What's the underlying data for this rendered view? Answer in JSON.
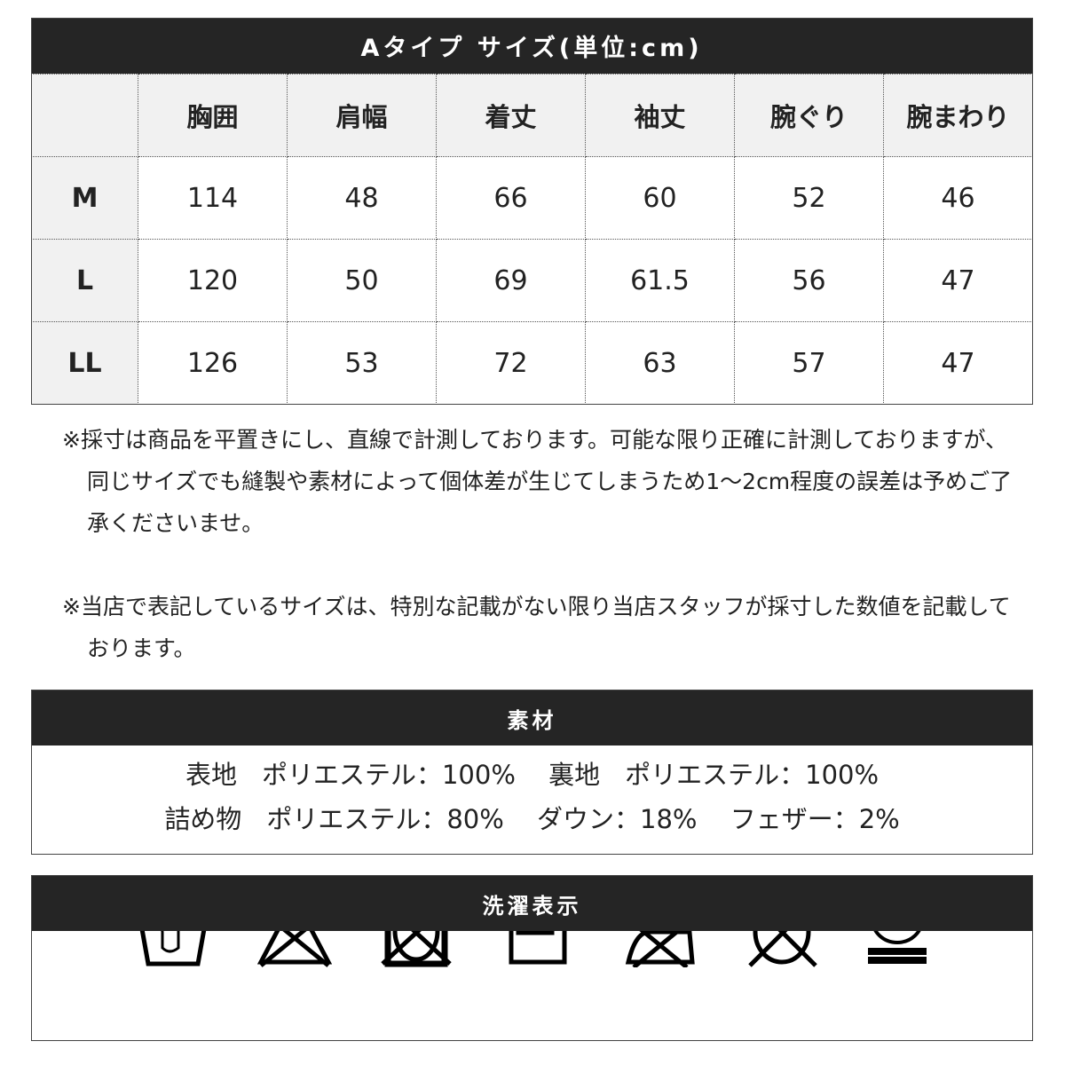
{
  "size_table": {
    "title": "Aタイプ サイズ(単位:cm)",
    "columns": [
      "",
      "胸囲",
      "肩幅",
      "着丈",
      "袖丈",
      "腕ぐり",
      "腕まわり"
    ],
    "rows": [
      {
        "size": "M",
        "values": [
          "114",
          "48",
          "66",
          "60",
          "52",
          "46"
        ]
      },
      {
        "size": "L",
        "values": [
          "120",
          "50",
          "69",
          "61.5",
          "56",
          "47"
        ]
      },
      {
        "size": "LL",
        "values": [
          "126",
          "53",
          "72",
          "63",
          "57",
          "47"
        ]
      }
    ]
  },
  "notes": [
    "※採寸は商品を平置きにし、直線で計測しております。可能な限り正確に計測しておりますが、同じサイズでも縫製や素材によって個体差が生じてしまうため1～2cm程度の誤差は予めご了承くださいませ。",
    "※当店で表記しているサイズは、特別な記載がない限り当店スタッフが採寸した数値を記載しております。"
  ],
  "material": {
    "title": "素材",
    "line1": [
      {
        "label": "表地",
        "value": "ポリエステル：100%"
      },
      {
        "label": "裏地",
        "value": "ポリエステル：100%"
      }
    ],
    "line2": [
      {
        "label": "詰め物",
        "value": "ポリエステル：80%"
      },
      {
        "label": "",
        "value": "ダウン：18%"
      },
      {
        "label": "",
        "value": "フェザー：2%"
      }
    ]
  },
  "laundry": {
    "title": "洗濯表示",
    "icons": [
      "hand-wash-icon",
      "no-bleach-icon",
      "no-tumble-dry-icon",
      "line-dry-shade-icon",
      "no-iron-icon",
      "no-dry-clean-icon",
      "wet-clean-very-gentle-icon"
    ]
  }
}
